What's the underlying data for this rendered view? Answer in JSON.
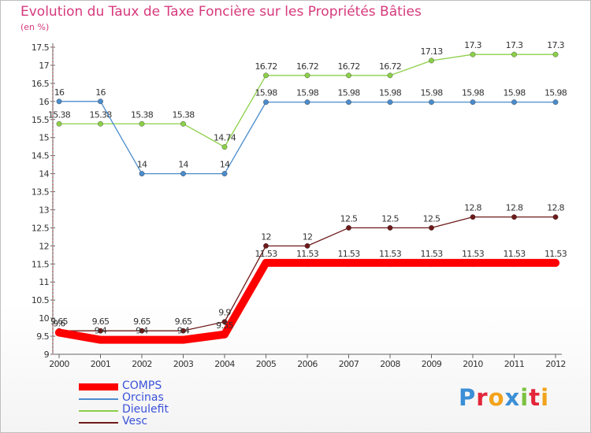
{
  "header": {
    "title": "Evolution du Taux de Taxe Foncière sur les Propriétés Bâties",
    "unit": "(en %)"
  },
  "logo": {
    "text": "Proxiti"
  },
  "chart_data": {
    "type": "line",
    "title": "Evolution du Taux de Taxe Foncière sur les Propriétés Bâties",
    "ylabel": "(en %)",
    "xlabel": "",
    "ylim": [
      9,
      17.5
    ],
    "ytick_step": 0.5,
    "grid": false,
    "legend_position": "bottom-left",
    "categories": [
      "2000",
      "2001",
      "2002",
      "2003",
      "2004",
      "2005",
      "2006",
      "2007",
      "2008",
      "2009",
      "2010",
      "2011",
      "2012"
    ],
    "series": [
      {
        "name": "Orcinas",
        "color": "#4a8ccc",
        "values": [
          16,
          16,
          14,
          14,
          14,
          15.98,
          15.98,
          15.98,
          15.98,
          15.98,
          15.98,
          15.98,
          15.98
        ],
        "labels": [
          "16",
          "16",
          "14",
          "14",
          "14",
          "15.98",
          "15.98",
          "15.98",
          "15.98",
          "15.98",
          "15.98",
          "15.98",
          "15.98"
        ]
      },
      {
        "name": "Dieulefit",
        "color": "#8cd048",
        "values": [
          15.38,
          15.38,
          15.38,
          15.38,
          14.74,
          16.72,
          16.72,
          16.72,
          16.72,
          17.13,
          17.3,
          17.3,
          17.3
        ],
        "labels": [
          "15.38",
          "15.38",
          "15.38",
          "15.38",
          "14.74",
          "16.72",
          "16.72",
          "16.72",
          "16.72",
          "17.13",
          "17.3",
          "17.3",
          "17.3"
        ]
      },
      {
        "name": "Vesc",
        "color": "#6e1a1a",
        "values": [
          9.65,
          9.65,
          9.65,
          9.65,
          9.9,
          12,
          12,
          12.5,
          12.5,
          12.5,
          12.8,
          12.8,
          12.8
        ],
        "labels": [
          "9.65",
          "9.65",
          "9.65",
          "9.65",
          "9.9",
          "12",
          "12",
          "12.5",
          "12.5",
          "12.5",
          "12.8",
          "12.8",
          "12.8"
        ]
      },
      {
        "name": "COMPS",
        "color": "#ff0000",
        "values": [
          9.6,
          9.4,
          9.4,
          9.4,
          9.55,
          11.53,
          11.53,
          11.53,
          11.53,
          11.53,
          11.53,
          11.53,
          11.53
        ],
        "labels": [
          "9.6",
          "9.4",
          "9.4",
          "9.4",
          "9.55",
          "11.53",
          "11.53",
          "11.53",
          "11.53",
          "11.53",
          "11.53",
          "11.53",
          "11.53"
        ]
      }
    ],
    "legend_order": [
      "COMPS",
      "Orcinas",
      "Dieulefit",
      "Vesc"
    ]
  }
}
